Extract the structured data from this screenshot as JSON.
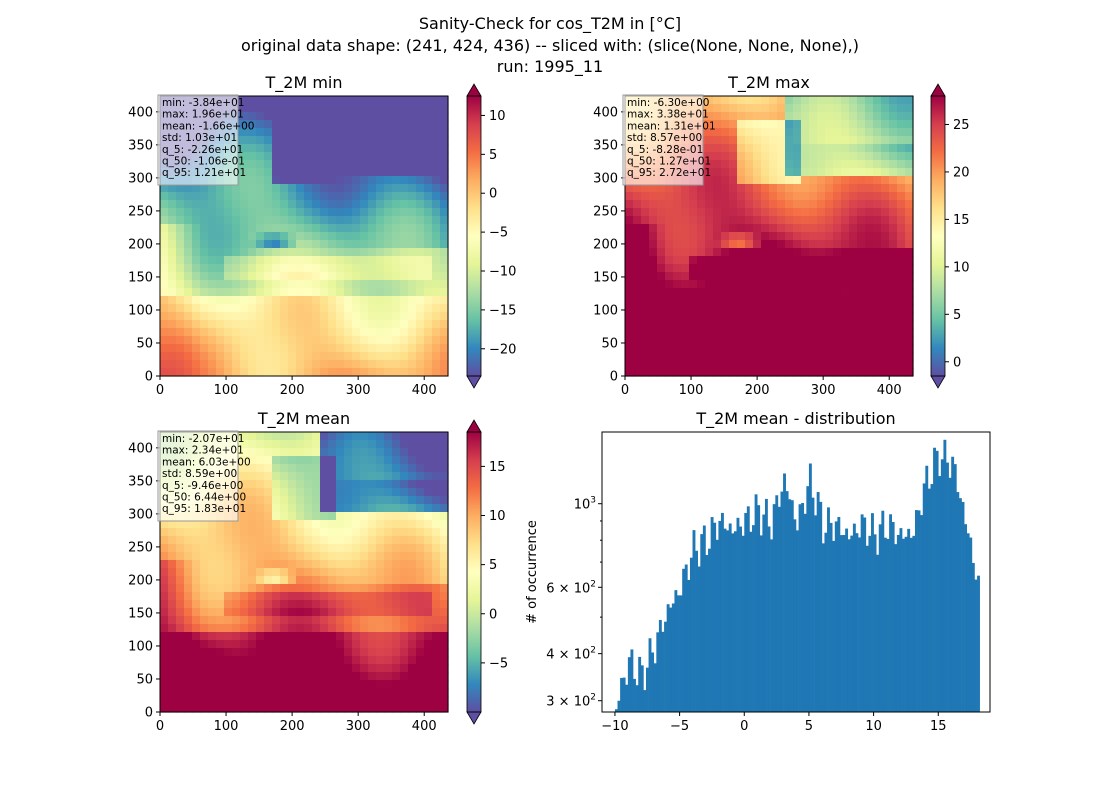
{
  "figure": {
    "title_lines": [
      "Sanity-Check for cos_T2M in [°C]",
      "original data shape: (241, 424, 436) -- sliced with: (slice(None, None, None),)",
      "run: 1995_11"
    ]
  },
  "panels": [
    {
      "title": "T_2M min",
      "stats": [
        "min: -3.84e+01",
        "max: 1.96e+01",
        "mean: -1.66e+00",
        "std: 1.03e+01",
        "q_5: -2.26e+01",
        "q_50: -1.06e-01",
        "q_95: 1.21e+01"
      ],
      "x_ticks": [
        "0",
        "100",
        "200",
        "300",
        "400"
      ],
      "y_ticks": [
        "0",
        "50",
        "100",
        "150",
        "200",
        "250",
        "300",
        "350",
        "400"
      ],
      "colorbar": {
        "min": -23.5,
        "max": 12.5,
        "ticks": [
          10,
          5,
          0,
          -5,
          -10,
          -15,
          -20
        ],
        "tick_labels": [
          "10",
          "5",
          "0",
          "−5",
          "−10",
          "−15",
          "−20"
        ]
      },
      "map_bias": -0.35
    },
    {
      "title": "T_2M max",
      "stats": [
        "min: -6.30e+00",
        "max: 3.38e+01",
        "mean: 1.31e+01",
        "std: 8.57e+00",
        "q_5: -8.28e-01",
        "q_50: 1.27e+01",
        "q_95: 2.72e+01"
      ],
      "x_ticks": [
        "0",
        "100",
        "200",
        "300",
        "400"
      ],
      "y_ticks": [
        "0",
        "50",
        "100",
        "150",
        "200",
        "250",
        "300",
        "350",
        "400"
      ],
      "colorbar": {
        "min": -1.5,
        "max": 28,
        "ticks": [
          25,
          20,
          15,
          10,
          5,
          0
        ],
        "tick_labels": [
          "25",
          "20",
          "15",
          "10",
          "5",
          "0"
        ]
      },
      "map_bias": 0.35
    },
    {
      "title": "T_2M mean",
      "stats": [
        "min: -2.07e+01",
        "max: 2.34e+01",
        "mean: 6.03e+00",
        "std: 8.59e+00",
        "q_5: -9.46e+00",
        "q_50: 6.44e+00",
        "q_95: 1.83e+01"
      ],
      "x_ticks": [
        "0",
        "100",
        "200",
        "300",
        "400"
      ],
      "y_ticks": [
        "0",
        "50",
        "100",
        "150",
        "200",
        "250",
        "300",
        "350",
        "400"
      ],
      "colorbar": {
        "min": -10,
        "max": 18.5,
        "ticks": [
          15,
          10,
          5,
          0,
          -5
        ],
        "tick_labels": [
          "15",
          "10",
          "5",
          "0",
          "−5"
        ]
      },
      "map_bias": 0.1
    }
  ],
  "colormap": "Spectral_r",
  "colormap_stops": [
    "#5e4fa2",
    "#3288bd",
    "#66c2a5",
    "#abdda4",
    "#e6f598",
    "#ffffbf",
    "#fee08b",
    "#fdae61",
    "#f46d43",
    "#d53e4f",
    "#9e0142"
  ],
  "chart_data": [
    {
      "type": "heatmap",
      "title": "T_2M min",
      "xlim": [
        0,
        436
      ],
      "ylim": [
        0,
        424
      ],
      "colorbar_range": [
        -23.5,
        12.5
      ]
    },
    {
      "type": "heatmap",
      "title": "T_2M max",
      "xlim": [
        0,
        436
      ],
      "ylim": [
        0,
        424
      ],
      "colorbar_range": [
        -1.5,
        28
      ]
    },
    {
      "type": "heatmap",
      "title": "T_2M mean",
      "xlim": [
        0,
        436
      ],
      "ylim": [
        0,
        424
      ],
      "colorbar_range": [
        -10,
        18.5
      ]
    },
    {
      "type": "bar",
      "title": "T_2M mean - distribution",
      "ylabel": "# of occurrence",
      "yscale": "log",
      "ylim": [
        280,
        1550
      ],
      "xlim": [
        -11,
        19
      ],
      "bar_color": "#1f77b4",
      "x_ticks": [
        "−10",
        "−5",
        "0",
        "5",
        "10",
        "15"
      ],
      "y_ticks": [
        {
          "value": 300,
          "base": "3",
          "exp": "2"
        },
        {
          "value": 400,
          "base": "4",
          "exp": "2"
        },
        {
          "value": 600,
          "base": "6",
          "exp": "2"
        },
        {
          "value": 1000,
          "base": "10",
          "exp": "3"
        }
      ],
      "bins_x": [
        -10,
        -9,
        -8,
        -7,
        -6,
        -5,
        -4,
        -3,
        -2,
        -1,
        0,
        1,
        2,
        3,
        4,
        5,
        6,
        7,
        8,
        9,
        10,
        11,
        12,
        13,
        14,
        15,
        16,
        17,
        18
      ],
      "bins_y": [
        290,
        380,
        350,
        420,
        520,
        600,
        760,
        800,
        900,
        850,
        900,
        960,
        890,
        1150,
        880,
        1150,
        880,
        880,
        820,
        880,
        830,
        880,
        820,
        840,
        1150,
        1350,
        1280,
        900,
        600
      ]
    }
  ]
}
